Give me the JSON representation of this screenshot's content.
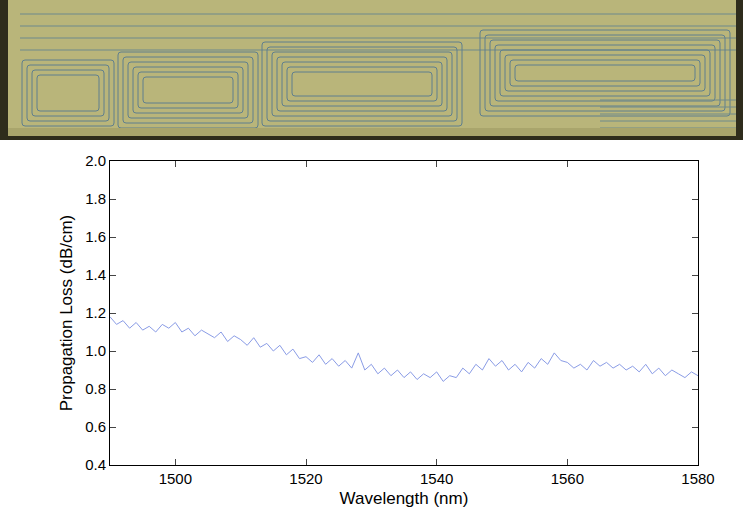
{
  "chart_data": {
    "type": "line",
    "x_label": "Wavelength (nm)",
    "y_label": "Propagation Loss (dB/cm)",
    "color": "#8a9ce6",
    "grid": false,
    "xlim": [
      1490,
      1580
    ],
    "ylim": [
      0.4,
      2.0
    ],
    "xticks": [
      1500,
      1520,
      1540,
      1560,
      1580
    ],
    "yticks": [
      0.4,
      0.6,
      0.8,
      {
        "value": 1,
        "label": "1.0"
      },
      1.2,
      1.4,
      1.6,
      1.8,
      {
        "value": 2,
        "label": "2.0"
      }
    ],
    "x": [
      1490,
      1491,
      1492,
      1493,
      1494,
      1495,
      1496,
      1497,
      1498,
      1499,
      1500,
      1501,
      1502,
      1503,
      1504,
      1505,
      1506,
      1507,
      1508,
      1509,
      1510,
      1511,
      1512,
      1513,
      1514,
      1515,
      1516,
      1517,
      1518,
      1519,
      1520,
      1521,
      1522,
      1523,
      1524,
      1525,
      1526,
      1527,
      1528,
      1529,
      1530,
      1531,
      1532,
      1533,
      1534,
      1535,
      1536,
      1537,
      1538,
      1539,
      1540,
      1541,
      1542,
      1543,
      1544,
      1545,
      1546,
      1547,
      1548,
      1549,
      1550,
      1551,
      1552,
      1553,
      1554,
      1555,
      1556,
      1557,
      1558,
      1559,
      1560,
      1561,
      1562,
      1563,
      1564,
      1565,
      1566,
      1567,
      1568,
      1569,
      1570,
      1571,
      1572,
      1573,
      1574,
      1575,
      1576,
      1577,
      1578,
      1579,
      1580
    ],
    "values": [
      1.18,
      1.14,
      1.16,
      1.12,
      1.15,
      1.11,
      1.13,
      1.1,
      1.14,
      1.12,
      1.15,
      1.1,
      1.12,
      1.08,
      1.11,
      1.09,
      1.07,
      1.1,
      1.05,
      1.08,
      1.06,
      1.03,
      1.07,
      1.02,
      1.04,
      1.0,
      1.03,
      0.98,
      1.01,
      0.96,
      0.97,
      0.94,
      0.98,
      0.93,
      0.96,
      0.92,
      0.95,
      0.91,
      0.99,
      0.9,
      0.93,
      0.88,
      0.91,
      0.87,
      0.9,
      0.86,
      0.89,
      0.85,
      0.88,
      0.86,
      0.89,
      0.84,
      0.87,
      0.86,
      0.91,
      0.88,
      0.93,
      0.9,
      0.96,
      0.92,
      0.95,
      0.9,
      0.93,
      0.89,
      0.94,
      0.91,
      0.96,
      0.93,
      0.99,
      0.95,
      0.94,
      0.91,
      0.93,
      0.9,
      0.95,
      0.92,
      0.94,
      0.91,
      0.93,
      0.9,
      0.92,
      0.89,
      0.93,
      0.88,
      0.91,
      0.87,
      0.9,
      0.88,
      0.86,
      0.89,
      0.87
    ]
  }
}
